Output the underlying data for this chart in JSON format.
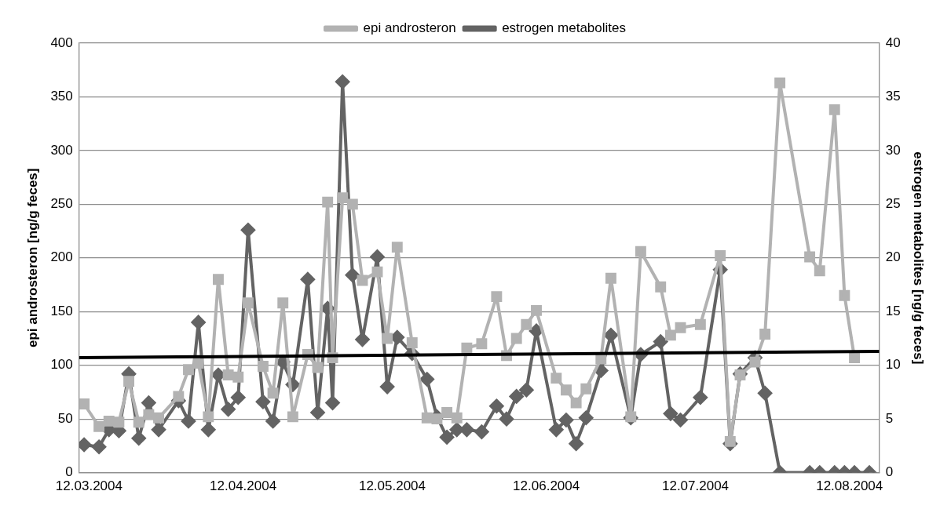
{
  "chart_data": {
    "type": "line",
    "ylabel": "epi androsteron [ng/g feces]",
    "y2label": "estrogen metabolites [ng/g feces]",
    "x": [
      "2004-03-11",
      "2004-03-14",
      "2004-03-16",
      "2004-03-18",
      "2004-03-20",
      "2004-03-22",
      "2004-03-24",
      "2004-03-26",
      "2004-03-30",
      "2004-04-01",
      "2004-04-03",
      "2004-04-05",
      "2004-04-07",
      "2004-04-09",
      "2004-04-11",
      "2004-04-13",
      "2004-04-16",
      "2004-04-18",
      "2004-04-20",
      "2004-04-22",
      "2004-04-25",
      "2004-04-27",
      "2004-04-29",
      "2004-04-30",
      "2004-05-02",
      "2004-05-04",
      "2004-05-06",
      "2004-05-09",
      "2004-05-11",
      "2004-05-13",
      "2004-05-16",
      "2004-05-19",
      "2004-05-21",
      "2004-05-23",
      "2004-05-25",
      "2004-05-27",
      "2004-05-30",
      "2004-06-02",
      "2004-06-04",
      "2004-06-06",
      "2004-06-08",
      "2004-06-10",
      "2004-06-14",
      "2004-06-16",
      "2004-06-18",
      "2004-06-20",
      "2004-06-23",
      "2004-06-25",
      "2004-06-29",
      "2004-07-01",
      "2004-07-05",
      "2004-07-07",
      "2004-07-09",
      "2004-07-13",
      "2004-07-17",
      "2004-07-19",
      "2004-07-21",
      "2004-07-24",
      "2004-07-26",
      "2004-07-29",
      "2004-08-04",
      "2004-08-06",
      "2004-08-09",
      "2004-08-11",
      "2004-08-13",
      "2004-08-16"
    ],
    "series": [
      {
        "name": "epi androsteron",
        "color": "#b2b2b2",
        "marker": "square",
        "values": [
          64,
          43,
          48,
          47,
          85,
          47,
          54,
          51,
          71,
          96,
          102,
          52,
          180,
          91,
          89,
          158,
          99,
          74,
          158,
          52,
          110,
          98,
          252,
          107,
          256,
          250,
          179,
          187,
          125,
          210,
          121,
          51,
          50,
          56,
          51,
          116,
          120,
          164,
          109,
          125,
          138,
          151,
          88,
          77,
          65,
          78,
          106,
          181,
          52,
          206,
          173,
          128,
          135,
          138,
          202,
          29,
          91,
          103,
          129,
          363,
          201,
          188,
          338,
          165,
          107,
          null
        ]
      },
      {
        "name": "estrogen metabolites",
        "color": "#636363",
        "marker": "diamond",
        "axis": "y2",
        "values": [
          2.6,
          2.4,
          4.0,
          3.9,
          9.2,
          3.2,
          6.5,
          4.0,
          6.7,
          4.8,
          14.0,
          4.0,
          9.1,
          5.9,
          7.0,
          22.6,
          6.6,
          4.8,
          10.3,
          8.2,
          18.0,
          5.6,
          15.3,
          6.5,
          36.4,
          18.4,
          12.4,
          20.1,
          8.0,
          12.6,
          11.1,
          8.7,
          5.2,
          3.3,
          4.0,
          4.0,
          3.8,
          6.2,
          5.0,
          7.1,
          7.7,
          13.2,
          4.0,
          4.9,
          2.7,
          5.1,
          9.5,
          12.8,
          5.1,
          11.0,
          12.2,
          5.5,
          4.9,
          7.0,
          18.9,
          2.7,
          9.2,
          10.7,
          7.4,
          0,
          0,
          0,
          0,
          0,
          0,
          0
        ]
      },
      {
        "color": "#000000",
        "marker": "none",
        "x": [
          "2004-03-10",
          "2004-08-18"
        ],
        "values": [
          107,
          113
        ]
      }
    ],
    "xlim": [
      "2004-03-10",
      "2004-08-18"
    ],
    "xticks": [
      {
        "value": "2004-03-12",
        "label": "12.03.2004"
      },
      {
        "value": "2004-04-12",
        "label": "12.04.2004"
      },
      {
        "value": "2004-05-12",
        "label": "12.05.2004"
      },
      {
        "value": "2004-06-12",
        "label": "12.06.2004"
      },
      {
        "value": "2004-07-12",
        "label": "12.07.2004"
      },
      {
        "value": "2004-08-12",
        "label": "12.08.2004"
      }
    ],
    "ylim": [
      0,
      400
    ],
    "yticks": [
      0,
      50,
      100,
      150,
      200,
      250,
      300,
      350,
      400
    ],
    "y2lim": [
      0,
      40
    ],
    "y2ticks": [
      0,
      5,
      10,
      15,
      20,
      25,
      30,
      35,
      40
    ],
    "grid": "y",
    "legend": "top"
  }
}
